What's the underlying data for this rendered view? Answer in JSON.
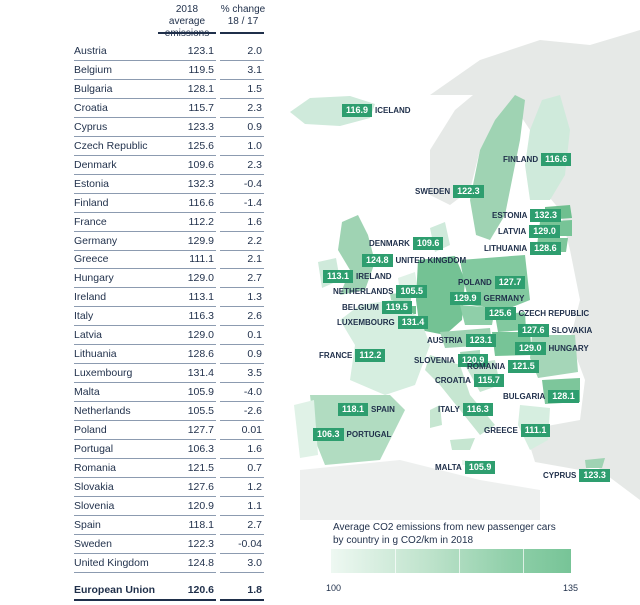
{
  "table": {
    "header_value_col": "2018 average emissions",
    "header_change_col": "% change 18 / 17",
    "rows": [
      {
        "country": "Austria",
        "value": "123.1",
        "change": "2.0"
      },
      {
        "country": "Belgium",
        "value": "119.5",
        "change": "3.1"
      },
      {
        "country": "Bulgaria",
        "value": "128.1",
        "change": "1.5"
      },
      {
        "country": "Croatia",
        "value": "115.7",
        "change": "2.3"
      },
      {
        "country": "Cyprus",
        "value": "123.3",
        "change": "0.9"
      },
      {
        "country": "Czech Republic",
        "value": "125.6",
        "change": "1.0"
      },
      {
        "country": "Denmark",
        "value": "109.6",
        "change": "2.3"
      },
      {
        "country": "Estonia",
        "value": "132.3",
        "change": "-0.4"
      },
      {
        "country": "Finland",
        "value": "116.6",
        "change": "-1.4"
      },
      {
        "country": "France",
        "value": "112.2",
        "change": "1.6"
      },
      {
        "country": "Germany",
        "value": "129.9",
        "change": "2.2"
      },
      {
        "country": "Greece",
        "value": "111.1",
        "change": "2.1"
      },
      {
        "country": "Hungary",
        "value": "129.0",
        "change": "2.7"
      },
      {
        "country": "Ireland",
        "value": "113.1",
        "change": "1.3"
      },
      {
        "country": "Italy",
        "value": "116.3",
        "change": "2.6"
      },
      {
        "country": "Latvia",
        "value": "129.0",
        "change": "0.1"
      },
      {
        "country": "Lithuania",
        "value": "128.6",
        "change": "0.9"
      },
      {
        "country": "Luxembourg",
        "value": "131.4",
        "change": "3.5"
      },
      {
        "country": "Malta",
        "value": "105.9",
        "change": "-4.0"
      },
      {
        "country": "Netherlands",
        "value": "105.5",
        "change": "-2.6"
      },
      {
        "country": "Poland",
        "value": "127.7",
        "change": "0.01"
      },
      {
        "country": "Portugal",
        "value": "106.3",
        "change": "1.6"
      },
      {
        "country": "Romania",
        "value": "121.5",
        "change": "0.7"
      },
      {
        "country": "Slovakia",
        "value": "127.6",
        "change": "1.2"
      },
      {
        "country": "Slovenia",
        "value": "120.9",
        "change": "1.1"
      },
      {
        "country": "Spain",
        "value": "118.1",
        "change": "2.7"
      },
      {
        "country": "Sweden",
        "value": "122.3",
        "change": "-0.04"
      },
      {
        "country": "United Kingdom",
        "value": "124.8",
        "change": "3.0"
      }
    ],
    "total": {
      "country": "European Union",
      "value": "120.6",
      "change": "1.8"
    }
  },
  "map": {
    "labels": [
      {
        "name": "ICELAND",
        "value": "116.9",
        "side": "right"
      },
      {
        "name": "FINLAND",
        "value": "116.6",
        "side": "left"
      },
      {
        "name": "SWEDEN",
        "value": "122.3",
        "side": "left"
      },
      {
        "name": "ESTONIA",
        "value": "132.3",
        "side": "left"
      },
      {
        "name": "LATVIA",
        "value": "129.0",
        "side": "left"
      },
      {
        "name": "LITHUANIA",
        "value": "128.6",
        "side": "left"
      },
      {
        "name": "DENMARK",
        "value": "109.6",
        "side": "left"
      },
      {
        "name": "UNITED KINGDOM",
        "value": "124.8",
        "side": "right"
      },
      {
        "name": "IRELAND",
        "value": "113.1",
        "side": "right"
      },
      {
        "name": "NETHERLANDS",
        "value": "105.5",
        "side": "left"
      },
      {
        "name": "BELGIUM",
        "value": "119.5",
        "side": "left"
      },
      {
        "name": "LUXEMBOURG",
        "value": "131.4",
        "side": "left"
      },
      {
        "name": "POLAND",
        "value": "127.7",
        "side": "left"
      },
      {
        "name": "GERMANY",
        "value": "129.9",
        "side": "right"
      },
      {
        "name": "CZECH REPUBLIC",
        "value": "125.6",
        "side": "right"
      },
      {
        "name": "SLOVAKIA",
        "value": "127.6",
        "side": "right"
      },
      {
        "name": "AUSTRIA",
        "value": "123.1",
        "side": "left"
      },
      {
        "name": "HUNGARY",
        "value": "129.0",
        "side": "right"
      },
      {
        "name": "FRANCE",
        "value": "112.2",
        "side": "left"
      },
      {
        "name": "SLOVENIA",
        "value": "120.9",
        "side": "left"
      },
      {
        "name": "ROMANIA",
        "value": "121.5",
        "side": "left"
      },
      {
        "name": "CROATIA",
        "value": "115.7",
        "side": "left"
      },
      {
        "name": "BULGARIA",
        "value": "128.1",
        "side": "left"
      },
      {
        "name": "SPAIN",
        "value": "118.1",
        "side": "right"
      },
      {
        "name": "ITALY",
        "value": "116.3",
        "side": "left"
      },
      {
        "name": "PORTUGAL",
        "value": "106.3",
        "side": "right"
      },
      {
        "name": "GREECE",
        "value": "111.1",
        "side": "left"
      },
      {
        "name": "MALTA",
        "value": "105.9",
        "side": "left"
      },
      {
        "name": "CYPRUS",
        "value": "123.3",
        "side": "left"
      }
    ],
    "legend": {
      "title_line1": "Average CO2 emissions from new passenger cars",
      "title_line2": "by country in g CO2/km in 2018",
      "min": "100",
      "max": "135"
    },
    "colors": {
      "label_box": "#2e9e6f",
      "land_light": "#cfeadb",
      "land_mid": "#9fd3b3",
      "land_dark": "#6fbf8f",
      "land_grey": "#e6e9e7",
      "text": "#1f2f4a"
    }
  }
}
